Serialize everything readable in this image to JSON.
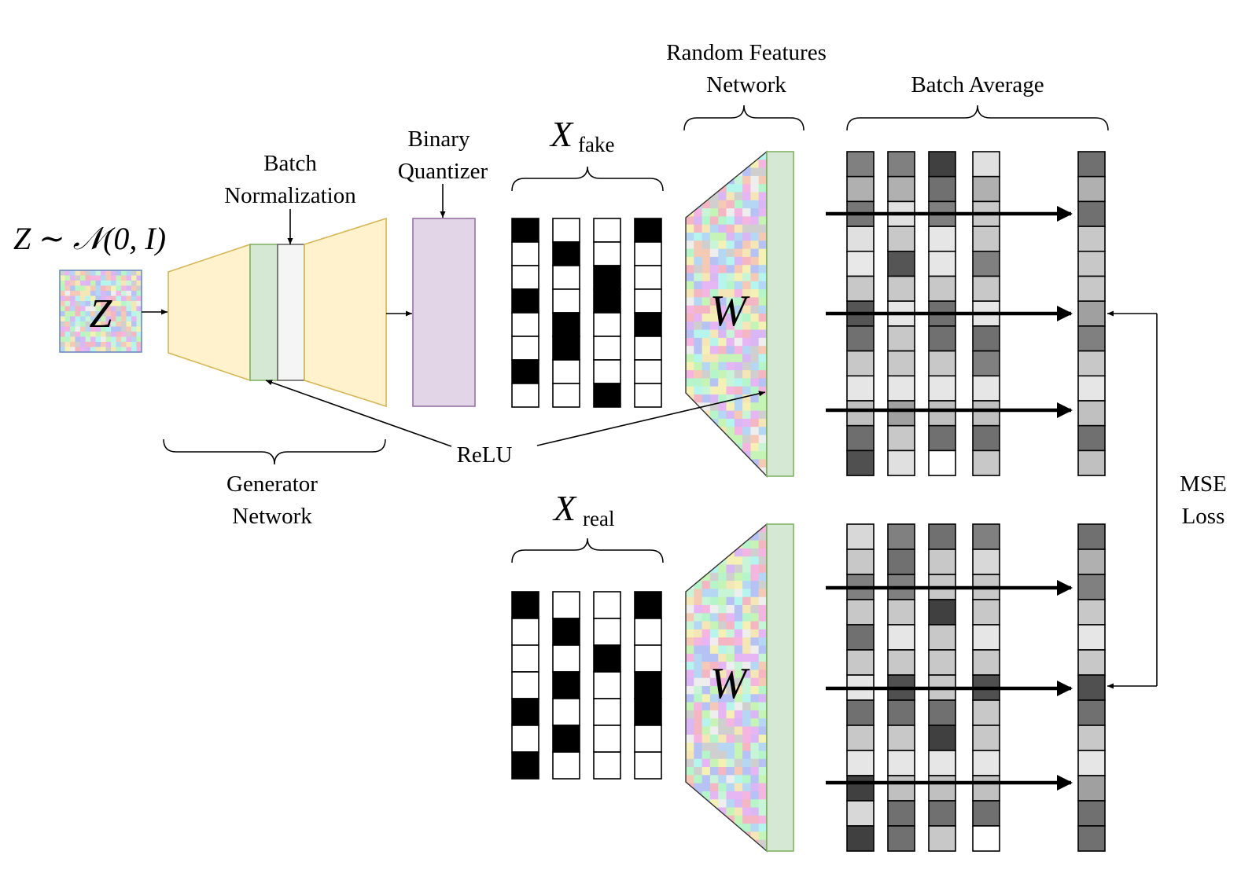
{
  "labels": {
    "z_dist": "Z ∼ 𝒩(0, I)",
    "z_box": "Z",
    "batch_norm_1": "Batch",
    "batch_norm_2": "Normalization",
    "binary_quant_1": "Binary",
    "binary_quant_2": "Quantizer",
    "x_fake_main": "X",
    "x_fake_sub": "fake",
    "x_real_main": "X",
    "x_real_sub": "real",
    "rf_network_1": "Random Features",
    "rf_network_2": "Network",
    "batch_avg": "Batch Average",
    "relu": "ReLU",
    "generator_1": "Generator",
    "generator_2": "Network",
    "w_top": "W",
    "w_bottom": "W",
    "mse_1": "MSE",
    "mse_2": "Loss"
  },
  "colors": {
    "generator_fill": "#fff2cc",
    "generator_stroke": "#d6b656",
    "batchnorm_green": "#d5e8d4",
    "batchnorm_grey": "#f5f5f5",
    "quantizer_fill": "#e1d5e7",
    "quantizer_stroke": "#9673a6",
    "rf_output": "#d5e8d4"
  },
  "x_fake_columns": [
    [
      1,
      0,
      0,
      1,
      0,
      0,
      1,
      0
    ],
    [
      0,
      1,
      0,
      0,
      1,
      1,
      0,
      0
    ],
    [
      0,
      0,
      1,
      1,
      0,
      0,
      0,
      1
    ],
    [
      1,
      0,
      0,
      0,
      1,
      0,
      0,
      0
    ]
  ],
  "x_real_columns": [
    [
      1,
      0,
      0,
      0,
      1,
      0,
      1
    ],
    [
      0,
      1,
      0,
      1,
      0,
      1,
      0
    ],
    [
      0,
      0,
      1,
      0,
      0,
      0,
      0
    ],
    [
      1,
      0,
      0,
      1,
      1,
      0,
      0
    ]
  ],
  "fake_features": [
    [
      "#808080",
      "#b0b0b0",
      "#777777",
      "#e0e0e0",
      "#e8e8e8",
      "#c8c8c8",
      "#555555",
      "#707070",
      "#c8c8c8",
      "#e6e6e6",
      "#c0c0c0",
      "#6e6e6e",
      "#505050"
    ],
    [
      "#808080",
      "#b0b0b0",
      "#e0e0e0",
      "#c8c8c8",
      "#555555",
      "#c8c8c8",
      "#e6e6e6",
      "#c8c8c8",
      "#c8c8c8",
      "#e6e6e6",
      "#a0a0a0",
      "#c8c8c8",
      "#e0e0e0"
    ],
    [
      "#404040",
      "#707070",
      "#808080",
      "#e6e6e6",
      "#e6e6e6",
      "#c8c8c8",
      "#707070",
      "#707070",
      "#c8c8c8",
      "#e6e6e6",
      "#c0c0c0",
      "#707070",
      "#ffffff"
    ],
    [
      "#e0e0e0",
      "#b0b0b0",
      "#c8c8c8",
      "#c8c8c8",
      "#808080",
      "#c8c8c8",
      "#e6e6e6",
      "#707070",
      "#808080",
      "#e6e6e6",
      "#c0c0c0",
      "#707070",
      "#c8c8c8"
    ]
  ],
  "fake_average": [
    "#707070",
    "#b0b0b0",
    "#707070",
    "#c8c8c8",
    "#c8c8c8",
    "#c8c8c8",
    "#a0a0a0",
    "#808080",
    "#c8c8c8",
    "#e6e6e6",
    "#c0c0c0",
    "#707070",
    "#c0c0c0"
  ],
  "real_features": [
    [
      "#d8d8d8",
      "#c8c8c8",
      "#808080",
      "#c8c8c8",
      "#707070",
      "#c8c8c8",
      "#e6e6e6",
      "#707070",
      "#c8c8c8",
      "#e6e6e6",
      "#404040",
      "#d8d8d8",
      "#404040"
    ],
    [
      "#808080",
      "#707070",
      "#808080",
      "#c8c8c8",
      "#e6e6e6",
      "#c8c8c8",
      "#505050",
      "#707070",
      "#c8c8c8",
      "#e6e6e6",
      "#c0c0c0",
      "#707070",
      "#707070"
    ],
    [
      "#707070",
      "#c8c8c8",
      "#c8c8c8",
      "#404040",
      "#c8c8c8",
      "#c8c8c8",
      "#c8c8c8",
      "#707070",
      "#404040",
      "#e6e6e6",
      "#c0c0c0",
      "#707070",
      "#c8c8c8"
    ],
    [
      "#808080",
      "#d8d8d8",
      "#c8c8c8",
      "#c8c8c8",
      "#e6e6e6",
      "#c8c8c8",
      "#505050",
      "#c8c8c8",
      "#c8c8c8",
      "#e6e6e6",
      "#c0c0c0",
      "#707070",
      "#ffffff"
    ]
  ],
  "real_average": [
    "#707070",
    "#b0b0b0",
    "#808080",
    "#c8c8c8",
    "#e6e6e6",
    "#c8c8c8",
    "#505050",
    "#707070",
    "#c8c8c8",
    "#e6e6e6",
    "#a0a0a0",
    "#707070",
    "#707070"
  ]
}
